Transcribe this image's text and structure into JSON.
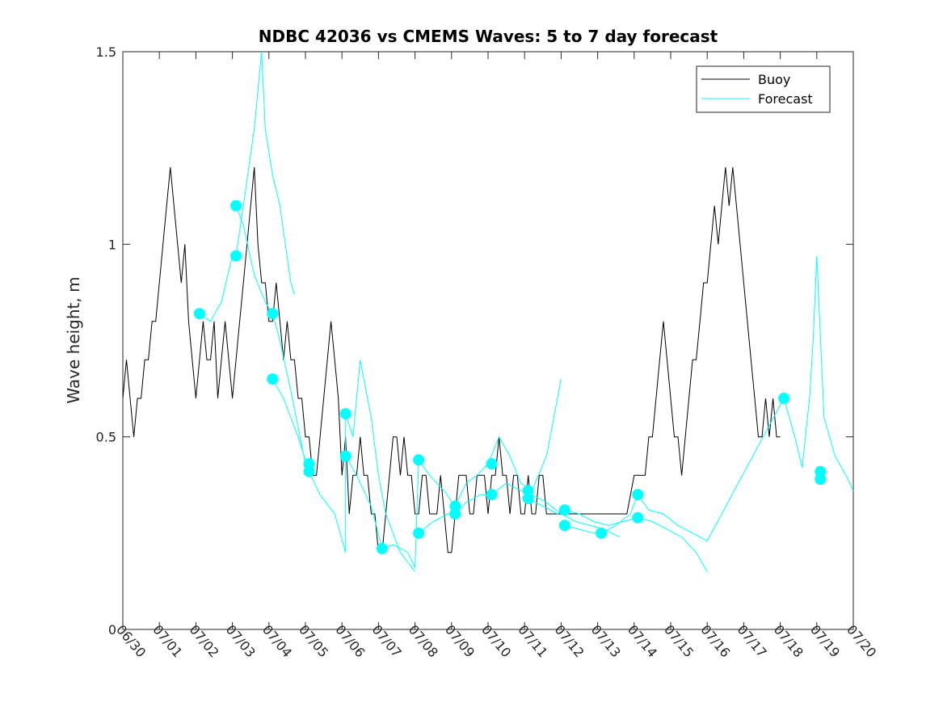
{
  "chart_data": {
    "type": "line",
    "title": "NDBC 42036 vs CMEMS Waves: 5 to 7 day forecast",
    "ylabel": "Wave height, m",
    "xlabel": "",
    "x_range_days": [
      0,
      20
    ],
    "ylim": [
      0,
      1.5
    ],
    "x_tick_labels": [
      "06/30",
      "07/01",
      "07/02",
      "07/03",
      "07/04",
      "07/05",
      "07/06",
      "07/07",
      "07/08",
      "07/09",
      "07/10",
      "07/11",
      "07/12",
      "07/13",
      "07/14",
      "07/15",
      "07/16",
      "07/17",
      "07/18",
      "07/19",
      "07/20"
    ],
    "y_ticks": [
      0,
      0.5,
      1,
      1.5
    ],
    "y_tick_labels": [
      "0",
      "0.5",
      "1",
      "1.5"
    ],
    "grid": false,
    "legend": {
      "placement": "top-right",
      "entries": [
        {
          "label": "Buoy",
          "color": "#000000"
        },
        {
          "label": "Forecast",
          "color": "#00ffff"
        }
      ]
    },
    "series": [
      {
        "name": "Buoy",
        "color": "#000000",
        "points": [
          [
            0,
            0.6
          ],
          [
            0.1,
            0.7
          ],
          [
            0.2,
            0.6
          ],
          [
            0.3,
            0.5
          ],
          [
            0.4,
            0.6
          ],
          [
            0.5,
            0.6
          ],
          [
            0.6,
            0.7
          ],
          [
            0.7,
            0.7
          ],
          [
            0.8,
            0.8
          ],
          [
            0.9,
            0.8
          ],
          [
            1.0,
            0.9
          ],
          [
            1.1,
            1.0
          ],
          [
            1.2,
            1.1
          ],
          [
            1.3,
            1.2
          ],
          [
            1.4,
            1.1
          ],
          [
            1.5,
            1.0
          ],
          [
            1.6,
            0.9
          ],
          [
            1.7,
            1.0
          ],
          [
            1.8,
            0.8
          ],
          [
            1.9,
            0.7
          ],
          [
            2.0,
            0.6
          ],
          [
            2.1,
            0.7
          ],
          [
            2.2,
            0.8
          ],
          [
            2.3,
            0.7
          ],
          [
            2.4,
            0.7
          ],
          [
            2.5,
            0.8
          ],
          [
            2.6,
            0.6
          ],
          [
            2.7,
            0.7
          ],
          [
            2.8,
            0.8
          ],
          [
            2.9,
            0.7
          ],
          [
            3.0,
            0.6
          ],
          [
            3.1,
            0.7
          ],
          [
            3.2,
            0.8
          ],
          [
            3.3,
            0.9
          ],
          [
            3.4,
            1.0
          ],
          [
            3.5,
            1.1
          ],
          [
            3.6,
            1.2
          ],
          [
            3.7,
            1.0
          ],
          [
            3.8,
            0.9
          ],
          [
            3.9,
            0.9
          ],
          [
            4.0,
            0.8
          ],
          [
            4.1,
            0.8
          ],
          [
            4.2,
            0.9
          ],
          [
            4.3,
            0.8
          ],
          [
            4.4,
            0.7
          ],
          [
            4.5,
            0.8
          ],
          [
            4.6,
            0.7
          ],
          [
            4.7,
            0.7
          ],
          [
            4.8,
            0.6
          ],
          [
            4.9,
            0.6
          ],
          [
            5.0,
            0.5
          ],
          [
            5.1,
            0.5
          ],
          [
            5.2,
            0.4
          ],
          [
            5.3,
            0.4
          ],
          [
            5.4,
            0.5
          ],
          [
            5.5,
            0.6
          ],
          [
            5.6,
            0.7
          ],
          [
            5.7,
            0.8
          ],
          [
            5.8,
            0.7
          ],
          [
            5.9,
            0.6
          ],
          [
            6.0,
            0.4
          ],
          [
            6.1,
            0.5
          ],
          [
            6.2,
            0.3
          ],
          [
            6.3,
            0.4
          ],
          [
            6.4,
            0.4
          ],
          [
            6.5,
            0.5
          ],
          [
            6.6,
            0.4
          ],
          [
            6.7,
            0.4
          ],
          [
            6.8,
            0.3
          ],
          [
            6.9,
            0.3
          ],
          [
            7.0,
            0.2
          ],
          [
            7.1,
            0.2
          ],
          [
            7.2,
            0.3
          ],
          [
            7.3,
            0.4
          ],
          [
            7.4,
            0.5
          ],
          [
            7.5,
            0.5
          ],
          [
            7.6,
            0.4
          ],
          [
            7.7,
            0.5
          ],
          [
            7.8,
            0.4
          ],
          [
            7.9,
            0.4
          ],
          [
            8.0,
            0.3
          ],
          [
            8.1,
            0.3
          ],
          [
            8.2,
            0.4
          ],
          [
            8.3,
            0.4
          ],
          [
            8.4,
            0.3
          ],
          [
            8.5,
            0.3
          ],
          [
            8.6,
            0.3
          ],
          [
            8.7,
            0.4
          ],
          [
            8.8,
            0.3
          ],
          [
            8.9,
            0.2
          ],
          [
            9.0,
            0.2
          ],
          [
            9.1,
            0.3
          ],
          [
            9.2,
            0.4
          ],
          [
            9.3,
            0.4
          ],
          [
            9.4,
            0.4
          ],
          [
            9.5,
            0.3
          ],
          [
            9.6,
            0.3
          ],
          [
            9.7,
            0.4
          ],
          [
            9.8,
            0.4
          ],
          [
            9.9,
            0.4
          ],
          [
            10.0,
            0.3
          ],
          [
            10.1,
            0.4
          ],
          [
            10.2,
            0.4
          ],
          [
            10.3,
            0.5
          ],
          [
            10.4,
            0.4
          ],
          [
            10.5,
            0.4
          ],
          [
            10.6,
            0.3
          ],
          [
            10.7,
            0.4
          ],
          [
            10.8,
            0.4
          ],
          [
            10.9,
            0.3
          ],
          [
            11.0,
            0.3
          ],
          [
            11.1,
            0.4
          ],
          [
            11.2,
            0.3
          ],
          [
            11.3,
            0.3
          ],
          [
            11.4,
            0.4
          ],
          [
            11.5,
            0.4
          ],
          [
            11.6,
            0.3
          ],
          [
            11.7,
            0.3
          ],
          [
            11.8,
            0.3
          ],
          [
            11.9,
            0.3
          ],
          [
            12.0,
            0.3
          ],
          [
            12.2,
            0.3
          ],
          [
            12.4,
            0.3
          ],
          [
            12.6,
            0.3
          ],
          [
            12.8,
            0.3
          ],
          [
            13.0,
            0.3
          ],
          [
            13.2,
            0.3
          ],
          [
            13.4,
            0.3
          ],
          [
            13.6,
            0.3
          ],
          [
            13.8,
            0.3
          ],
          [
            14.0,
            0.4
          ],
          [
            14.1,
            0.4
          ],
          [
            14.2,
            0.4
          ],
          [
            14.3,
            0.4
          ],
          [
            14.4,
            0.5
          ],
          [
            14.5,
            0.5
          ],
          [
            14.6,
            0.6
          ],
          [
            14.7,
            0.7
          ],
          [
            14.8,
            0.8
          ],
          [
            14.9,
            0.7
          ],
          [
            15.0,
            0.6
          ],
          [
            15.1,
            0.5
          ],
          [
            15.2,
            0.5
          ],
          [
            15.3,
            0.4
          ],
          [
            15.4,
            0.5
          ],
          [
            15.5,
            0.6
          ],
          [
            15.6,
            0.7
          ],
          [
            15.7,
            0.7
          ],
          [
            15.8,
            0.8
          ],
          [
            15.9,
            0.9
          ],
          [
            16.0,
            0.9
          ],
          [
            16.1,
            1.0
          ],
          [
            16.2,
            1.1
          ],
          [
            16.3,
            1.0
          ],
          [
            16.4,
            1.1
          ],
          [
            16.5,
            1.2
          ],
          [
            16.6,
            1.1
          ],
          [
            16.7,
            1.2
          ],
          [
            16.8,
            1.1
          ],
          [
            16.9,
            1.0
          ],
          [
            17.0,
            0.9
          ],
          [
            17.1,
            0.8
          ],
          [
            17.2,
            0.7
          ],
          [
            17.3,
            0.6
          ],
          [
            17.4,
            0.5
          ],
          [
            17.5,
            0.5
          ],
          [
            17.6,
            0.6
          ],
          [
            17.7,
            0.5
          ],
          [
            17.8,
            0.6
          ],
          [
            17.9,
            0.5
          ],
          [
            18.0,
            0.5
          ]
        ]
      },
      {
        "name": "Forecast",
        "color": "#00ffff",
        "points": [
          [
            2.1,
            0.82
          ],
          [
            2.4,
            0.8
          ],
          [
            2.7,
            0.85
          ],
          [
            3.0,
            0.97
          ],
          [
            3.1,
            0.97
          ],
          [
            3.3,
            1.1
          ],
          [
            3.6,
            1.3
          ],
          [
            3.8,
            1.5
          ],
          [
            3.9,
            1.3
          ],
          [
            4.1,
            1.18
          ],
          [
            4.3,
            1.1
          ],
          [
            4.6,
            0.9
          ],
          [
            4.7,
            0.87
          ],
          [
            3.1,
            1.1
          ],
          [
            3.3,
            1.05
          ],
          [
            3.6,
            0.92
          ],
          [
            3.9,
            0.85
          ],
          [
            4.1,
            0.82
          ],
          [
            4.3,
            0.75
          ],
          [
            4.6,
            0.62
          ],
          [
            5.0,
            0.43
          ],
          [
            4.1,
            0.65
          ],
          [
            4.4,
            0.6
          ],
          [
            4.8,
            0.5
          ],
          [
            5.1,
            0.41
          ],
          [
            5.4,
            0.35
          ],
          [
            5.8,
            0.3
          ],
          [
            6.1,
            0.2
          ],
          [
            6.1,
            0.56
          ],
          [
            6.3,
            0.5
          ],
          [
            6.5,
            0.7
          ],
          [
            6.8,
            0.55
          ],
          [
            7.0,
            0.4
          ],
          [
            7.2,
            0.3
          ],
          [
            7.6,
            0.2
          ],
          [
            8.0,
            0.15
          ],
          [
            6.1,
            0.45
          ],
          [
            6.4,
            0.4
          ],
          [
            6.8,
            0.32
          ],
          [
            7.1,
            0.21
          ],
          [
            7.4,
            0.22
          ],
          [
            7.8,
            0.2
          ],
          [
            8.0,
            0.16
          ],
          [
            8.1,
            0.44
          ],
          [
            8.4,
            0.4
          ],
          [
            8.8,
            0.36
          ],
          [
            9.1,
            0.32
          ],
          [
            9.4,
            0.38
          ],
          [
            9.7,
            0.4
          ],
          [
            10.0,
            0.43
          ],
          [
            10.3,
            0.5
          ],
          [
            10.6,
            0.45
          ],
          [
            10.9,
            0.38
          ],
          [
            11.2,
            0.36
          ],
          [
            11.6,
            0.45
          ],
          [
            11.9,
            0.6
          ],
          [
            12.0,
            0.65
          ],
          [
            8.1,
            0.25
          ],
          [
            8.5,
            0.28
          ],
          [
            8.9,
            0.3
          ],
          [
            9.1,
            0.3
          ],
          [
            9.4,
            0.33
          ],
          [
            9.8,
            0.35
          ],
          [
            10.1,
            0.35
          ],
          [
            10.5,
            0.38
          ],
          [
            10.9,
            0.36
          ],
          [
            11.2,
            0.35
          ],
          [
            11.6,
            0.33
          ],
          [
            12.0,
            0.3
          ],
          [
            12.4,
            0.28
          ],
          [
            12.8,
            0.27
          ],
          [
            13.2,
            0.26
          ],
          [
            13.6,
            0.24
          ],
          [
            11.1,
            0.34
          ],
          [
            11.5,
            0.32
          ],
          [
            11.9,
            0.3
          ],
          [
            12.1,
            0.31
          ],
          [
            12.5,
            0.3
          ],
          [
            12.9,
            0.28
          ],
          [
            13.3,
            0.27
          ],
          [
            13.7,
            0.28
          ],
          [
            14.1,
            0.29
          ],
          [
            14.5,
            0.28
          ],
          [
            14.9,
            0.26
          ],
          [
            15.3,
            0.24
          ],
          [
            15.7,
            0.2
          ],
          [
            16.0,
            0.15
          ],
          [
            12.1,
            0.27
          ],
          [
            12.5,
            0.26
          ],
          [
            12.9,
            0.25
          ],
          [
            13.1,
            0.25
          ],
          [
            13.5,
            0.27
          ],
          [
            13.9,
            0.3
          ],
          [
            14.1,
            0.35
          ],
          [
            14.4,
            0.31
          ],
          [
            14.8,
            0.3
          ],
          [
            15.2,
            0.27
          ],
          [
            15.6,
            0.25
          ],
          [
            16.0,
            0.23
          ],
          [
            18.1,
            0.6
          ],
          [
            18.4,
            0.5
          ],
          [
            18.6,
            0.42
          ],
          [
            18.8,
            0.6
          ],
          [
            18.9,
            0.75
          ],
          [
            19.0,
            0.97
          ],
          [
            19.2,
            0.55
          ],
          [
            19.5,
            0.45
          ],
          [
            19.8,
            0.4
          ],
          [
            20.0,
            0.36
          ]
        ]
      }
    ],
    "forecast_markers": [
      [
        2.1,
        0.82
      ],
      [
        3.1,
        1.1
      ],
      [
        3.1,
        0.97
      ],
      [
        4.1,
        0.82
      ],
      [
        4.1,
        0.65
      ],
      [
        5.1,
        0.43
      ],
      [
        5.1,
        0.41
      ],
      [
        6.1,
        0.56
      ],
      [
        6.1,
        0.45
      ],
      [
        7.1,
        0.21
      ],
      [
        8.1,
        0.44
      ],
      [
        8.1,
        0.25
      ],
      [
        9.1,
        0.32
      ],
      [
        9.1,
        0.3
      ],
      [
        10.1,
        0.43
      ],
      [
        10.1,
        0.35
      ],
      [
        11.1,
        0.36
      ],
      [
        11.1,
        0.34
      ],
      [
        12.1,
        0.31
      ],
      [
        12.1,
        0.27
      ],
      [
        13.1,
        0.25
      ],
      [
        14.1,
        0.35
      ],
      [
        14.1,
        0.29
      ],
      [
        18.1,
        0.6
      ],
      [
        19.1,
        0.41
      ],
      [
        19.1,
        0.39
      ]
    ]
  }
}
